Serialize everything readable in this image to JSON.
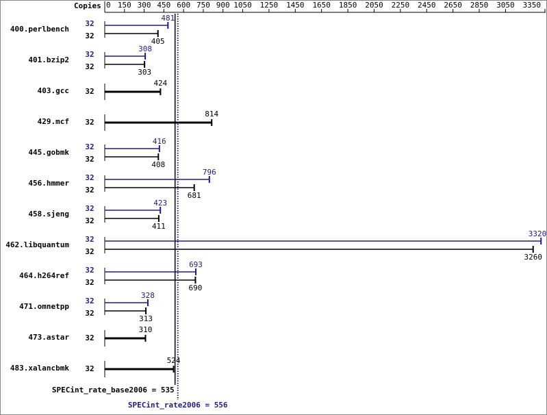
{
  "chart_data": {
    "type": "bar",
    "orientation": "horizontal",
    "copies_label": "Copies",
    "categories": [
      "400.perlbench",
      "401.bzip2",
      "403.gcc",
      "429.mcf",
      "445.gobmk",
      "456.hmmer",
      "458.sjeng",
      "462.libquantum",
      "464.h264ref",
      "471.omnetpp",
      "473.astar",
      "483.xalancbmk"
    ],
    "series": [
      {
        "color": "#1c1c8c",
        "values": [
          481,
          308,
          null,
          null,
          416,
          796,
          423,
          3320,
          693,
          328,
          null,
          null
        ],
        "copies": [
          32,
          32,
          null,
          null,
          32,
          32,
          32,
          32,
          32,
          32,
          null,
          null
        ]
      },
      {
        "color": "#000000",
        "values": [
          405,
          303,
          424,
          814,
          408,
          681,
          411,
          3260,
          690,
          313,
          310,
          524
        ],
        "copies": [
          32,
          32,
          32,
          32,
          32,
          32,
          32,
          32,
          32,
          32,
          32,
          32
        ]
      }
    ],
    "xlim": [
      0,
      3350
    ],
    "xticks": [
      0,
      150,
      300,
      450,
      600,
      750,
      900,
      1050,
      1250,
      1450,
      1650,
      1850,
      2050,
      2250,
      2450,
      2650,
      2850,
      3050,
      3350
    ],
    "reference_lines": [
      {
        "label": "SPECint_rate_base2006 = 535",
        "value": 535,
        "color": "#000000",
        "style": "solid"
      },
      {
        "label": "SPECint_rate2006 = 556",
        "value": 556,
        "color": "#1c1c8c",
        "style": "dotted"
      }
    ]
  }
}
